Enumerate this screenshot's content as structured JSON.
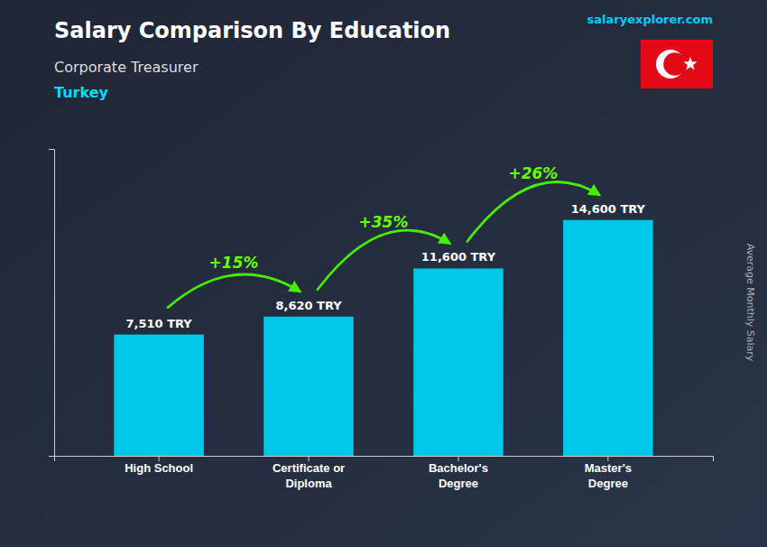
{
  "chart_data": {
    "type": "bar",
    "title": "Salary Comparison By Education",
    "subtitle": [
      "Corporate Treasurer",
      "Turkey"
    ],
    "ylabel": "Average Monthly Salary",
    "source": "salaryexplorer.com",
    "categories": [
      "High School",
      "Certificate or\nDiploma",
      "Bachelor's\nDegree",
      "Master's\nDegree"
    ],
    "values": [
      7510,
      8620,
      11600,
      14600
    ],
    "value_labels": [
      "7,510 TRY",
      "8,620 TRY",
      "11,600 TRY",
      "14,600 TRY"
    ],
    "data_labels": true,
    "annotations": [
      "+15%",
      "+35%",
      "+26%"
    ],
    "color": "#00c8e8",
    "ylim": [
      0,
      19000
    ],
    "tick_labels": "x",
    "grid": false
  }
}
